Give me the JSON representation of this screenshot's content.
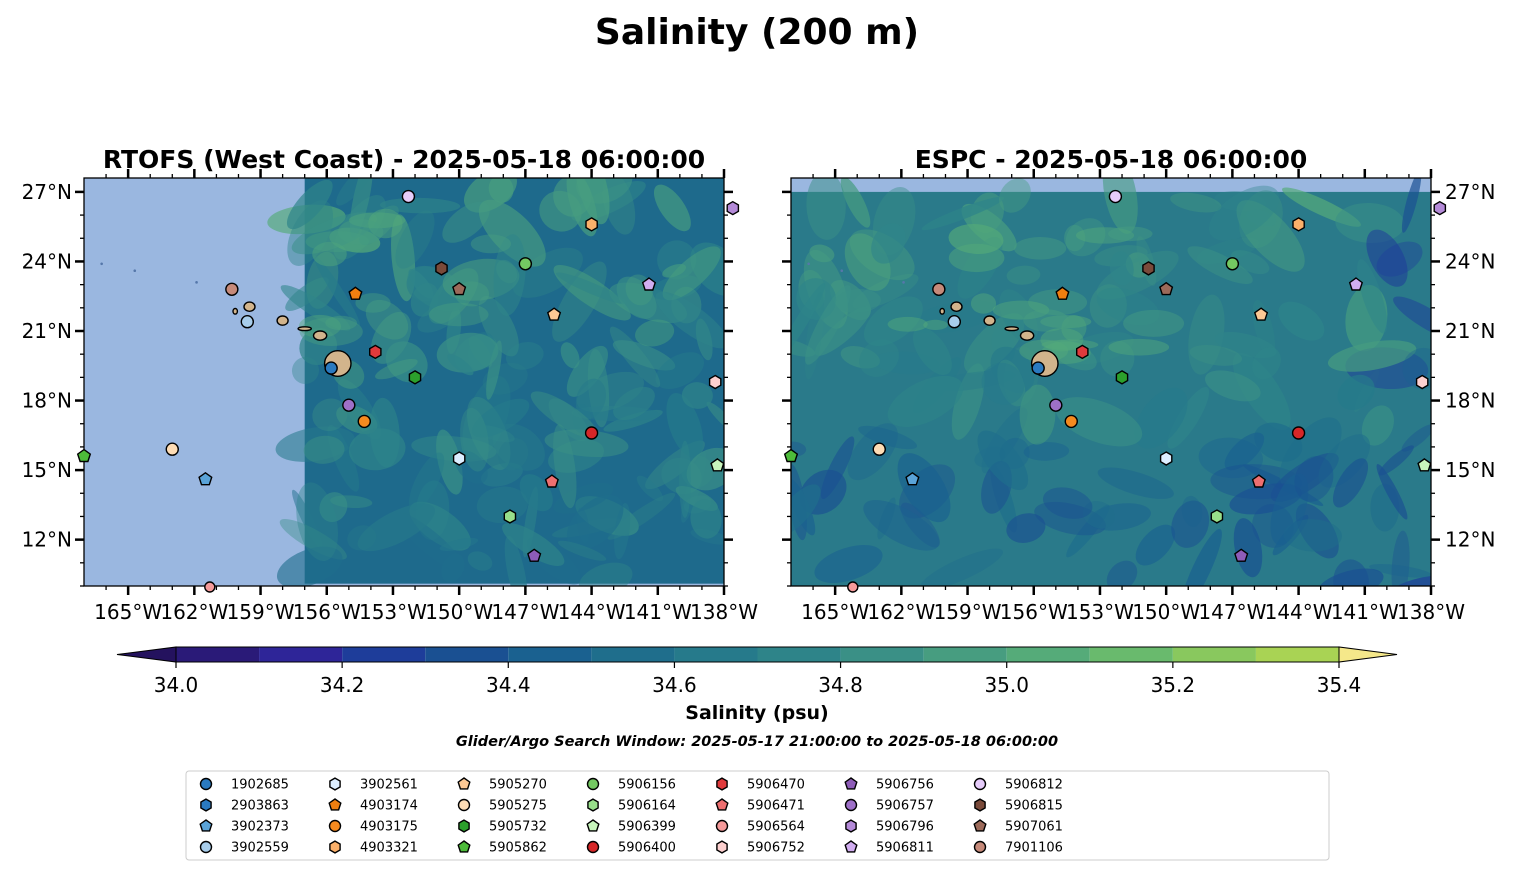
{
  "figure": {
    "title": "Salinity (200 m)",
    "search_window": "Glider/Argo Search Window: 2025-05-17 21:00:00 to 2025-05-18 06:00:00"
  },
  "panels": [
    {
      "key": "rtofs",
      "title": "RTOFS (West Coast) - 2025-05-18 06:00:00",
      "data_lon_min": -157.0,
      "data_lat_max": 27.6,
      "data_lat_min": 10.1,
      "colors": {
        "masked": "#9ab7e0",
        "base": "#1e6a8c"
      }
    },
    {
      "key": "espc",
      "title": "ESPC - 2025-05-18 06:00:00",
      "data_lon_min": -167.0,
      "data_lat_max": 27.0,
      "data_lat_min": 10.0,
      "colors": {
        "masked": "#9ab7e0",
        "base": "#2a7a8a"
      }
    }
  ],
  "map": {
    "lon_range": [
      -167,
      -138
    ],
    "lat_range": [
      10,
      27.6
    ],
    "x_ticks": [
      {
        "value": -165,
        "label": "165°W"
      },
      {
        "value": -162,
        "label": "162°W"
      },
      {
        "value": -159,
        "label": "159°W"
      },
      {
        "value": -156,
        "label": "156°W"
      },
      {
        "value": -153,
        "label": "153°W"
      },
      {
        "value": -150,
        "label": "150°W"
      },
      {
        "value": -147,
        "label": "147°W"
      },
      {
        "value": -144,
        "label": "144°W"
      },
      {
        "value": -141,
        "label": "141°W"
      },
      {
        "value": -138,
        "label": "138°W"
      }
    ],
    "y_ticks": [
      {
        "value": 27,
        "label": "27°N"
      },
      {
        "value": 24,
        "label": "24°N"
      },
      {
        "value": 21,
        "label": "21°N"
      },
      {
        "value": 18,
        "label": "18°N"
      },
      {
        "value": 15,
        "label": "15°N"
      },
      {
        "value": 12,
        "label": "12°N"
      }
    ],
    "land_color": "#d2b48c",
    "islands": [
      {
        "name": "Hawaii",
        "lon": -155.5,
        "lat": 19.6,
        "rlon": 0.6,
        "rlat": 0.55
      },
      {
        "name": "Maui",
        "lon": -156.3,
        "lat": 20.8,
        "rlon": 0.3,
        "rlat": 0.2
      },
      {
        "name": "Molokai",
        "lon": -157.0,
        "lat": 21.1,
        "rlon": 0.3,
        "rlat": 0.08
      },
      {
        "name": "Oahu",
        "lon": -158.0,
        "lat": 21.45,
        "rlon": 0.25,
        "rlat": 0.2
      },
      {
        "name": "Kauai",
        "lon": -159.5,
        "lat": 22.05,
        "rlon": 0.25,
        "rlat": 0.2
      },
      {
        "name": "Niihau",
        "lon": -160.15,
        "lat": 21.85,
        "rlon": 0.1,
        "rlat": 0.12
      }
    ]
  },
  "colorbar": {
    "label": "Salinity (psu)",
    "vmin": 34.0,
    "vmax": 35.4,
    "ticks": [
      34.0,
      34.2,
      34.4,
      34.6,
      34.8,
      35.0,
      35.2,
      35.4
    ],
    "tick_labels": [
      "34.0",
      "34.2",
      "34.4",
      "34.6",
      "34.8",
      "35.0",
      "35.2",
      "35.4"
    ],
    "colors": [
      "#2a1a78",
      "#2e2598",
      "#1e3d9a",
      "#1a5092",
      "#1a6190",
      "#1f6e8c",
      "#267a8b",
      "#2e8489",
      "#3a9086",
      "#479d80",
      "#55ab79",
      "#69ba6d",
      "#89c85e",
      "#a9d354",
      "#d0df62"
    ],
    "under_color": "#24125e",
    "over_color": "#f5e88a"
  },
  "chart_data": {
    "type": "scatter",
    "xlabel": "",
    "ylabel": "",
    "legend_position": "bottom",
    "series": [
      {
        "name": "1902685",
        "marker": "circle",
        "color": "#2a7ac0",
        "lon": -155.8,
        "lat": 19.4
      },
      {
        "name": "2903863",
        "marker": "hexagon",
        "color": "#2a7ac0",
        "lon": null,
        "lat": null
      },
      {
        "name": "3902373",
        "marker": "pentagon",
        "color": "#5aa3d8",
        "lon": -161.5,
        "lat": 14.6
      },
      {
        "name": "3902559",
        "marker": "circle",
        "color": "#a8cdeb",
        "lon": -159.6,
        "lat": 21.4
      },
      {
        "name": "3902561",
        "marker": "hexagon",
        "color": "#ddeeff",
        "lon": -150.0,
        "lat": 15.5
      },
      {
        "name": "4903174",
        "marker": "pentagon",
        "color": "#f07f10",
        "lon": -154.7,
        "lat": 22.6
      },
      {
        "name": "4903175",
        "marker": "circle",
        "color": "#f58a1f",
        "lon": -154.3,
        "lat": 17.1
      },
      {
        "name": "4903321",
        "marker": "hexagon",
        "color": "#fbb06a",
        "lon": -144.0,
        "lat": 25.6
      },
      {
        "name": "5905270",
        "marker": "pentagon",
        "color": "#fcc894",
        "lon": -145.7,
        "lat": 21.7
      },
      {
        "name": "5905275",
        "marker": "circle",
        "color": "#fddcb5",
        "lon": -163.0,
        "lat": 15.9
      },
      {
        "name": "5905732",
        "marker": "hexagon",
        "color": "#2ca02c",
        "lon": -152.0,
        "lat": 19.0
      },
      {
        "name": "5905862",
        "marker": "pentagon",
        "color": "#4dbb3a",
        "lon": -167.0,
        "lat": 15.6
      },
      {
        "name": "5906156",
        "marker": "circle",
        "color": "#74c862",
        "lon": -147.0,
        "lat": 23.9
      },
      {
        "name": "5906164",
        "marker": "hexagon",
        "color": "#98df8a",
        "lon": -147.7,
        "lat": 13.0
      },
      {
        "name": "5906399",
        "marker": "pentagon",
        "color": "#c8f5bc",
        "lon": -138.3,
        "lat": 15.2
      },
      {
        "name": "5906400",
        "marker": "circle",
        "color": "#d62728",
        "lon": -144.0,
        "lat": 16.6
      },
      {
        "name": "5906470",
        "marker": "hexagon",
        "color": "#e03a3c",
        "lon": -153.8,
        "lat": 20.1
      },
      {
        "name": "5906471",
        "marker": "pentagon",
        "color": "#ee6f70",
        "lon": -145.8,
        "lat": 14.5
      },
      {
        "name": "5906564",
        "marker": "circle",
        "color": "#f59a9a",
        "lon": null,
        "lat": null
      },
      {
        "name": "5906752",
        "marker": "hexagon",
        "color": "#fdd0cf",
        "lon": -138.4,
        "lat": 18.8
      },
      {
        "name": "5906756",
        "marker": "pentagon",
        "color": "#8e5cb8",
        "lon": -146.6,
        "lat": 11.3
      },
      {
        "name": "5906757",
        "marker": "circle",
        "color": "#9e70c8",
        "lon": -155.0,
        "lat": 17.8
      },
      {
        "name": "5906796",
        "marker": "hexagon",
        "color": "#b48ad8",
        "lon": -137.6,
        "lat": 26.3
      },
      {
        "name": "5906811",
        "marker": "pentagon",
        "color": "#d1adf0",
        "lon": -141.4,
        "lat": 23.0
      },
      {
        "name": "5906812",
        "marker": "circle",
        "color": "#e6ccfa",
        "lon": -152.3,
        "lat": 26.8
      },
      {
        "name": "5906815",
        "marker": "hexagon",
        "color": "#7a4a3a",
        "lon": -150.8,
        "lat": 23.7
      },
      {
        "name": "5907061",
        "marker": "pentagon",
        "color": "#9c6a5a",
        "lon": -150.0,
        "lat": 22.8
      },
      {
        "name": "7901106",
        "marker": "circle",
        "color": "#c68a7a",
        "lon": -160.3,
        "lat": 22.8
      }
    ]
  }
}
